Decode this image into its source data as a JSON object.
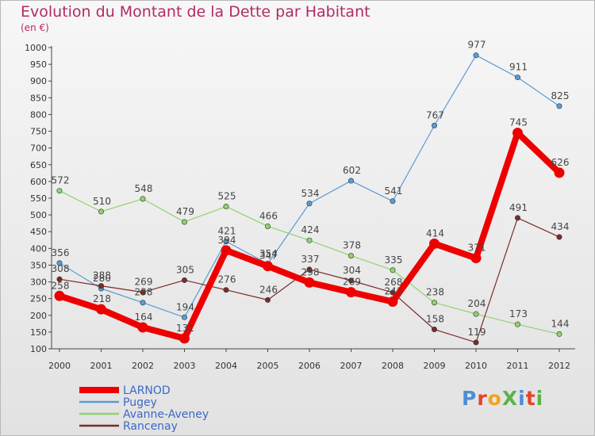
{
  "title": "Evolution du Montant de la Dette par Habitant",
  "subtitle": "(en €)",
  "logo": {
    "text": "ProXiti",
    "colors": [
      "#4a8fd6",
      "#e1452b",
      "#f0a41c",
      "#5ab449",
      "#4a8fd6",
      "#e1452b",
      "#5ab449"
    ]
  },
  "chart_data": {
    "type": "line",
    "x": [
      "2000",
      "2001",
      "2002",
      "2003",
      "2004",
      "2005",
      "2006",
      "2007",
      "2008",
      "2009",
      "2010",
      "2011",
      "2012"
    ],
    "ylim": [
      100,
      1000
    ],
    "yticks": [
      100,
      150,
      200,
      250,
      300,
      350,
      400,
      450,
      500,
      550,
      600,
      650,
      700,
      750,
      800,
      850,
      900,
      950,
      1000
    ],
    "grid": false,
    "legend_position": "bottom-left",
    "series": [
      {
        "name": "LARNOD",
        "color": "#ee0000",
        "values": [
          258,
          218,
          164,
          131,
          394,
          347,
          298,
          269,
          241,
          414,
          371,
          745,
          626
        ]
      },
      {
        "name": "Pugey",
        "color": "#5b9bd5",
        "values": [
          356,
          280,
          238,
          194,
          421,
          354,
          534,
          602,
          541,
          767,
          977,
          911,
          825
        ]
      },
      {
        "name": "Avanne-Aveney",
        "color": "#8fd46a",
        "values": [
          572,
          510,
          548,
          479,
          525,
          466,
          424,
          378,
          335,
          238,
          204,
          173,
          144
        ]
      },
      {
        "name": "Rancenay",
        "color": "#7b2b2b",
        "values": [
          308,
          288,
          269,
          305,
          276,
          246,
          337,
          304,
          268,
          158,
          119,
          491,
          434
        ]
      }
    ]
  }
}
